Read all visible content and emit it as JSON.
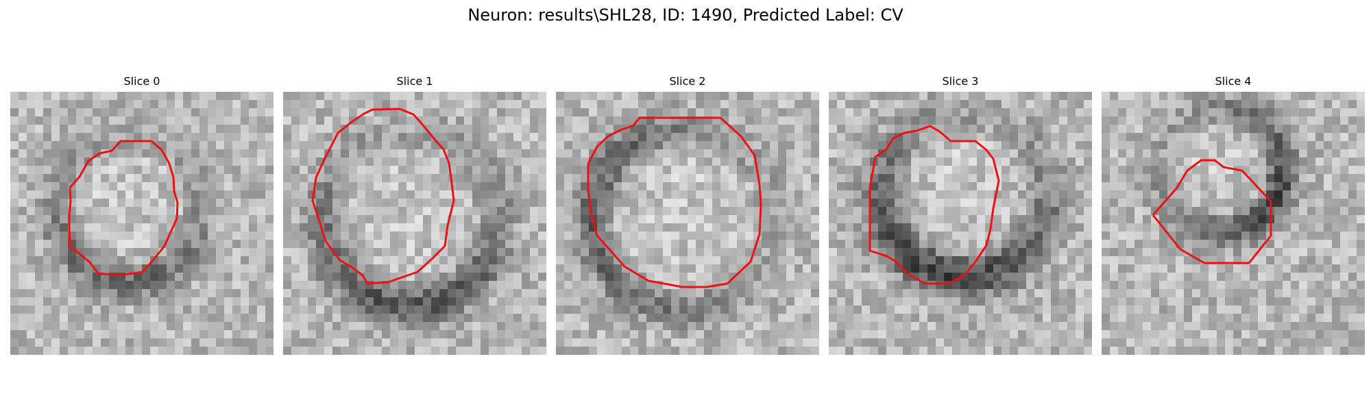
{
  "figure": {
    "title": "Neuron: results\\SHL28, ID: 1490, Predicted Label: CV"
  },
  "panels": [
    {
      "title": "Slice 0"
    },
    {
      "title": "Slice 1"
    },
    {
      "title": "Slice 2"
    },
    {
      "title": "Slice 3"
    },
    {
      "title": "Slice 4"
    }
  ],
  "colors": {
    "contour": "#ee1111",
    "background": "#ffffff"
  }
}
